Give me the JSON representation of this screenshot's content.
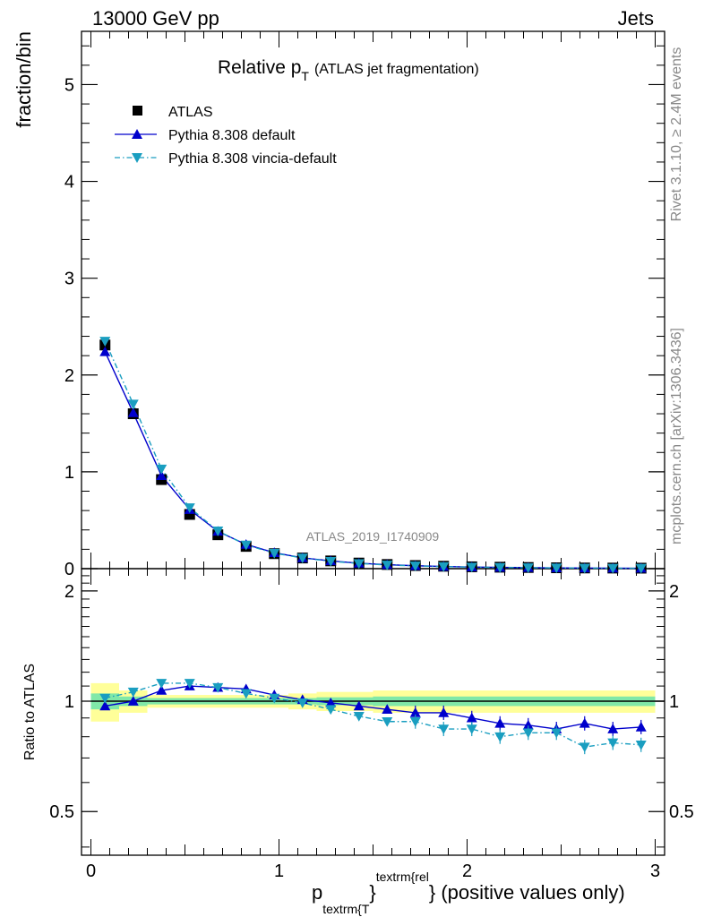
{
  "header": {
    "left": "13000 GeV pp",
    "right": "Jets"
  },
  "title": {
    "main": "Relative p",
    "sub": "T",
    "suffix": "(ATLAS jet fragmentation)"
  },
  "side_labels": {
    "rivet": "Rivet 3.1.10, ≥ 2.4M events",
    "mcplots": "mcplots.cern.ch [arXiv:1306.3436]"
  },
  "analysis_id": "ATLAS_2019_I1740909",
  "axes": {
    "ylabel_main": "fraction/bin",
    "ylabel_ratio": "Ratio to ATLAS",
    "xlabel_p": "p",
    "xlabel_sub": "textrm{T",
    "xlabel_sup": "textrm{rel",
    "xlabel_suffix": "} (positive values only)",
    "xlabel_brace": "}"
  },
  "colors": {
    "atlas": "#000000",
    "default": "#0000cc",
    "vincia": "#1a9ec0",
    "band_yellow": "#ffff99",
    "band_green": "#80e8a8"
  },
  "chart_data": {
    "type": "line",
    "x": [
      0.075,
      0.225,
      0.375,
      0.525,
      0.675,
      0.825,
      0.975,
      1.125,
      1.275,
      1.425,
      1.575,
      1.725,
      1.875,
      2.025,
      2.175,
      2.325,
      2.475,
      2.625,
      2.775,
      2.925
    ],
    "xlim": [
      -0.05,
      3.05
    ],
    "ylim": [
      0,
      5.55
    ],
    "ratio_ylim": [
      0.38,
      2.3
    ],
    "x_ticks": [
      0,
      1,
      2,
      3
    ],
    "y_ticks": [
      0,
      1,
      2,
      3,
      4,
      5
    ],
    "ratio_y_ticks": [
      0.5,
      1,
      2
    ],
    "legend_position": "top-left",
    "series": [
      {
        "name": "ATLAS",
        "marker": "square",
        "values": [
          2.31,
          1.6,
          0.92,
          0.56,
          0.35,
          0.23,
          0.155,
          0.11,
          0.08,
          0.058,
          0.043,
          0.032,
          0.025,
          0.019,
          0.015,
          0.012,
          0.009,
          0.007,
          0.006,
          0.005
        ],
        "ratio": [
          1,
          1,
          1,
          1,
          1,
          1,
          1,
          1,
          1,
          1,
          1,
          1,
          1,
          1,
          1,
          1,
          1,
          1,
          1,
          1
        ],
        "band_outer": [
          0.12,
          0.07,
          0.04,
          0.04,
          0.04,
          0.04,
          0.04,
          0.05,
          0.06,
          0.06,
          0.07,
          0.07,
          0.07,
          0.07,
          0.07,
          0.07,
          0.07,
          0.07,
          0.07,
          0.07
        ],
        "band_inner": [
          0.05,
          0.03,
          0.02,
          0.02,
          0.02,
          0.02,
          0.02,
          0.02,
          0.025,
          0.025,
          0.03,
          0.03,
          0.03,
          0.03,
          0.03,
          0.03,
          0.03,
          0.03,
          0.03,
          0.03
        ]
      },
      {
        "name": "Pythia 8.308 default",
        "marker": "triangle-up",
        "values": [
          2.24,
          1.61,
          0.96,
          0.61,
          0.385,
          0.25,
          0.165,
          0.112,
          0.08,
          0.056,
          0.041,
          0.03,
          0.023,
          0.017,
          0.013,
          0.0105,
          0.0077,
          0.0062,
          0.005,
          0.0043
        ],
        "ratio": [
          0.97,
          1.0,
          1.07,
          1.1,
          1.09,
          1.08,
          1.04,
          1.01,
          0.99,
          0.97,
          0.95,
          0.93,
          0.93,
          0.9,
          0.87,
          0.86,
          0.84,
          0.87,
          0.84,
          0.85
        ]
      },
      {
        "name": "Pythia 8.308 vincia-default",
        "marker": "triangle-down",
        "values": [
          2.35,
          1.7,
          1.03,
          0.63,
          0.39,
          0.245,
          0.16,
          0.11,
          0.076,
          0.053,
          0.038,
          0.028,
          0.021,
          0.016,
          0.012,
          0.0098,
          0.0074,
          0.0052,
          0.0046,
          0.0038
        ],
        "ratio": [
          1.02,
          1.06,
          1.12,
          1.12,
          1.09,
          1.05,
          1.02,
          0.99,
          0.95,
          0.91,
          0.88,
          0.88,
          0.84,
          0.84,
          0.8,
          0.82,
          0.82,
          0.75,
          0.77,
          0.76
        ]
      }
    ]
  }
}
